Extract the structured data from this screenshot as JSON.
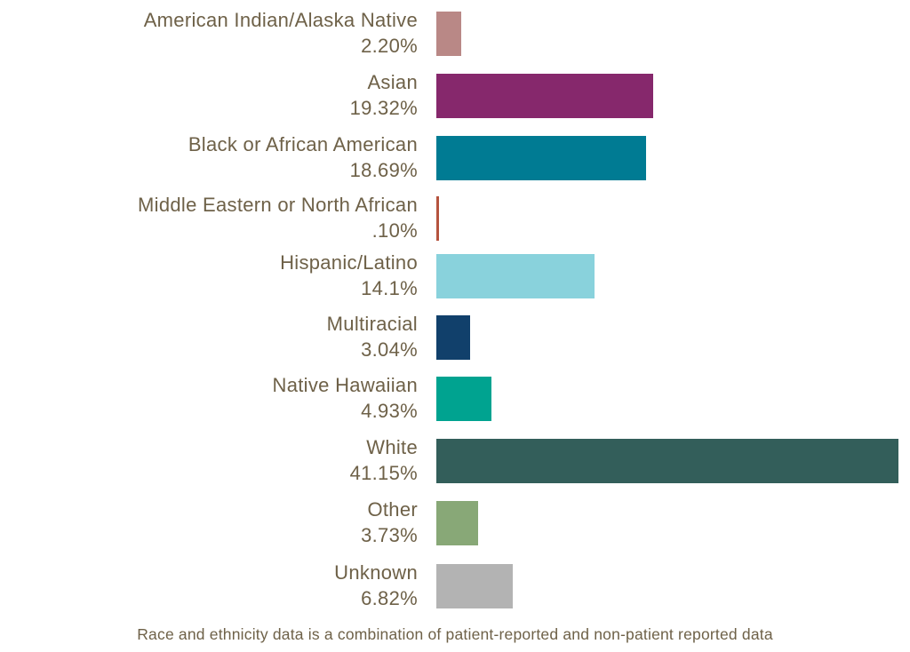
{
  "chart_data": {
    "type": "bar",
    "orientation": "horizontal",
    "categories": [
      "American Indian/Alaska Native",
      "Asian",
      "Black or African American",
      "Middle Eastern or North African",
      "Hispanic/Latino",
      "Multiracial",
      "Native Hawaiian",
      "White",
      "Other",
      "Unknown"
    ],
    "values": [
      2.2,
      19.32,
      18.69,
      0.1,
      14.1,
      3.04,
      4.93,
      41.15,
      3.73,
      6.82
    ],
    "value_labels": [
      "2.20%",
      "19.32%",
      "18.69%",
      ".10%",
      "14.1%",
      "3.04%",
      "4.93%",
      "41.15%",
      "3.73%",
      "6.82%"
    ],
    "colors": [
      "#b98886",
      "#86286c",
      "#007b93",
      "#b5533e",
      "#89d2dc",
      "#11406b",
      "#00a390",
      "#335e5a",
      "#88a877",
      "#b3b3b3"
    ],
    "xlim": [
      0,
      41.15
    ],
    "grid": false,
    "title": "",
    "xlabel": "",
    "ylabel": ""
  },
  "footnote": "Race and ethnicity data is a combination of patient-reported and non-patient reported data"
}
